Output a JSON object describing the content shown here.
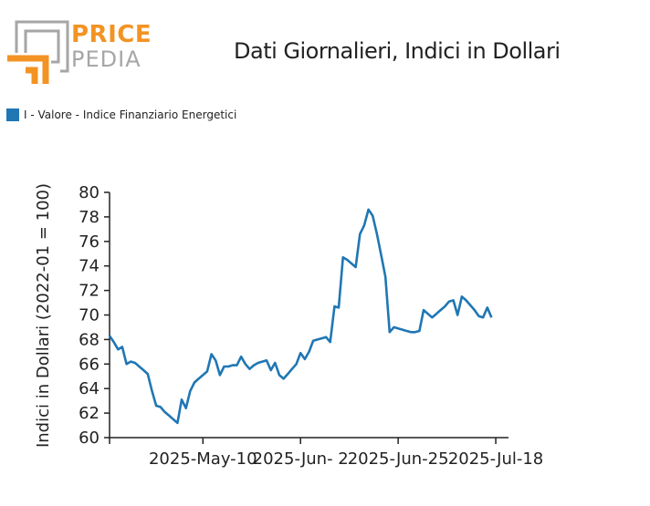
{
  "logo": {
    "line1": "PRICE",
    "line2": "PEDIA"
  },
  "colors": {
    "series": "#1f77b4",
    "logo_orange": "#f39323",
    "logo_grey": "#a6a6a6"
  },
  "chart_data": {
    "type": "line",
    "title": "Dati Giornalieri, Indici in Dollari",
    "ylabel": "Indici in Dollari (2022-01 = 100)",
    "xlabel": "",
    "ylim": [
      60,
      80
    ],
    "y_ticks": [
      60,
      62,
      64,
      66,
      68,
      70,
      72,
      74,
      76,
      78,
      80
    ],
    "x_ticks": [
      {
        "label": "2025-May-10",
        "x": 22
      },
      {
        "label": "2025-Jun- 2",
        "x": 45
      },
      {
        "label": "2025-Jun-25",
        "x": 68
      },
      {
        "label": "2025-Jul-18",
        "x": 91
      }
    ],
    "xlim": [
      0,
      94
    ],
    "legend": "top-left",
    "grid": false,
    "series": [
      {
        "name": "I - Valore - Indice Finanziario Energetici",
        "color": "#1f77b4",
        "points": [
          [
            0,
            68.3
          ],
          [
            1,
            67.8
          ],
          [
            2,
            67.2
          ],
          [
            3,
            67.4
          ],
          [
            4,
            66.0
          ],
          [
            5,
            66.2
          ],
          [
            6,
            66.1
          ],
          [
            7,
            65.8
          ],
          [
            8,
            65.5
          ],
          [
            9,
            65.2
          ],
          [
            10,
            63.8
          ],
          [
            11,
            62.6
          ],
          [
            12,
            62.5
          ],
          [
            13,
            62.1
          ],
          [
            14,
            61.8
          ],
          [
            15,
            61.5
          ],
          [
            16,
            61.2
          ],
          [
            17,
            63.1
          ],
          [
            18,
            62.4
          ],
          [
            19,
            63.8
          ],
          [
            20,
            64.5
          ],
          [
            21,
            64.8
          ],
          [
            22,
            65.1
          ],
          [
            23,
            65.4
          ],
          [
            24,
            66.8
          ],
          [
            25,
            66.3
          ],
          [
            26,
            65.1
          ],
          [
            27,
            65.8
          ],
          [
            28,
            65.8
          ],
          [
            29,
            65.9
          ],
          [
            30,
            65.9
          ],
          [
            31,
            66.6
          ],
          [
            32,
            66.0
          ],
          [
            33,
            65.6
          ],
          [
            34,
            65.9
          ],
          [
            35,
            66.1
          ],
          [
            36,
            66.2
          ],
          [
            37,
            66.3
          ],
          [
            38,
            65.5
          ],
          [
            39,
            66.1
          ],
          [
            40,
            65.1
          ],
          [
            41,
            64.8
          ],
          [
            42,
            65.2
          ],
          [
            43,
            65.6
          ],
          [
            44,
            66.0
          ],
          [
            45,
            66.9
          ],
          [
            46,
            66.4
          ],
          [
            47,
            67.0
          ],
          [
            48,
            67.9
          ],
          [
            49,
            68.0
          ],
          [
            50,
            68.1
          ],
          [
            51,
            68.2
          ],
          [
            52,
            67.8
          ],
          [
            53,
            70.7
          ],
          [
            54,
            70.6
          ],
          [
            55,
            74.7
          ],
          [
            56,
            74.5
          ],
          [
            57,
            74.2
          ],
          [
            58,
            73.9
          ],
          [
            59,
            76.6
          ],
          [
            60,
            77.3
          ],
          [
            61,
            78.6
          ],
          [
            62,
            78.1
          ],
          [
            63,
            76.6
          ],
          [
            64,
            74.9
          ],
          [
            65,
            73.1
          ],
          [
            66,
            68.6
          ],
          [
            67,
            69.0
          ],
          [
            68,
            68.9
          ],
          [
            69,
            68.8
          ],
          [
            70,
            68.7
          ],
          [
            71,
            68.6
          ],
          [
            72,
            68.6
          ],
          [
            73,
            68.7
          ],
          [
            74,
            70.4
          ],
          [
            75,
            70.1
          ],
          [
            76,
            69.8
          ],
          [
            77,
            70.1
          ],
          [
            78,
            70.4
          ],
          [
            79,
            70.7
          ],
          [
            80,
            71.1
          ],
          [
            81,
            71.2
          ],
          [
            82,
            70.0
          ],
          [
            83,
            71.5
          ],
          [
            84,
            71.2
          ],
          [
            85,
            70.8
          ],
          [
            86,
            70.4
          ],
          [
            87,
            69.9
          ],
          [
            88,
            69.8
          ],
          [
            89,
            70.6
          ],
          [
            90,
            69.8
          ]
        ]
      }
    ]
  }
}
